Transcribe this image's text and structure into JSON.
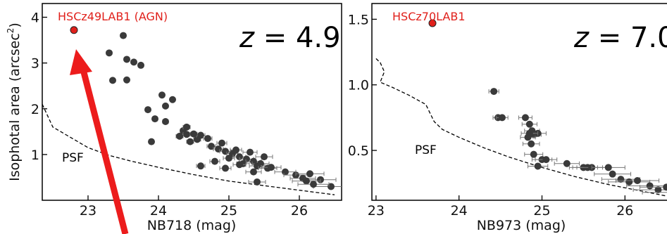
{
  "colors": {
    "points": "#3a3a3a",
    "highlight": "#e0201b",
    "arrow": "#ec1c1c"
  },
  "chart_data": [
    {
      "type": "scatter",
      "title": "",
      "xlabel": "NB718 (mag)",
      "ylabel": "Isophotal area (arcsec",
      "ylabel_sup": "2",
      "ylabel_close": ")",
      "redshift_var": "z",
      "redshift_val": " = 4.9",
      "xlim": [
        22.35,
        26.6
      ],
      "ylim": [
        0,
        4.3
      ],
      "xticks": [
        "23",
        "24",
        "25",
        "26"
      ],
      "yticks": [
        "1",
        "2",
        "3",
        "4"
      ],
      "highlight": {
        "label": "HSCz49LAB1 (AGN)",
        "x": 22.8,
        "y": 3.72
      },
      "psf_label": "PSF",
      "psf_curve": {
        "x": [
          22.35,
          22.5,
          22.7,
          23.0,
          23.3,
          23.6,
          24.0,
          24.5,
          25.0,
          25.5,
          26.0,
          26.5
        ],
        "y": [
          2.1,
          1.6,
          1.42,
          1.15,
          0.98,
          0.86,
          0.72,
          0.56,
          0.42,
          0.32,
          0.22,
          0.12
        ]
      },
      "points": {
        "x": [
          23.3,
          23.5,
          23.55,
          23.65,
          23.35,
          23.55,
          23.75,
          23.85,
          23.95,
          24.05,
          23.9,
          24.1,
          24.2,
          24.1,
          24.35,
          24.4,
          24.45,
          24.55,
          24.6,
          24.75,
          24.85,
          24.95,
          25.05,
          25.15,
          25.25,
          25.35,
          25.45,
          24.5,
          24.7,
          24.9,
          25.1,
          25.3,
          25.5,
          24.8,
          25.0,
          25.2,
          25.4,
          24.95,
          25.15,
          25.35,
          25.55,
          25.8,
          25.95,
          26.05,
          26.15,
          26.3,
          26.45,
          26.1,
          26.2,
          25.4,
          24.6,
          24.4,
          24.3,
          25.6
        ],
        "y": [
          3.22,
          3.6,
          3.08,
          3.02,
          2.62,
          2.63,
          2.95,
          1.98,
          1.78,
          2.3,
          1.28,
          2.06,
          2.2,
          1.72,
          1.52,
          1.44,
          1.28,
          1.33,
          1.42,
          1.18,
          1.12,
          1.07,
          1.02,
          0.95,
          0.9,
          0.85,
          0.8,
          1.45,
          1.35,
          1.25,
          1.1,
          1.05,
          0.95,
          0.85,
          0.92,
          0.8,
          0.75,
          0.7,
          0.78,
          0.62,
          0.7,
          0.62,
          0.55,
          0.48,
          0.58,
          0.45,
          0.3,
          0.42,
          0.35,
          0.4,
          0.75,
          1.6,
          1.4,
          0.72
        ],
        "xerr": [
          0,
          0,
          0,
          0,
          0,
          0,
          0,
          0,
          0,
          0,
          0,
          0,
          0,
          0.04,
          0.04,
          0.05,
          0.05,
          0.05,
          0.06,
          0.06,
          0.07,
          0.08,
          0.08,
          0.09,
          0.1,
          0.11,
          0.12,
          0.05,
          0.06,
          0.07,
          0.08,
          0.1,
          0.12,
          0.07,
          0.08,
          0.09,
          0.11,
          0.08,
          0.09,
          0.11,
          0.13,
          0.15,
          0.17,
          0.18,
          0.2,
          0.22,
          0.25,
          0.2,
          0.22,
          0.12,
          0.06,
          0.05,
          0.05,
          0.14
        ]
      }
    },
    {
      "type": "scatter",
      "title": "",
      "xlabel": "NB973 (mag)",
      "ylabel": "",
      "redshift_var": "z",
      "redshift_val": " = 7.0",
      "xlim": [
        22.95,
        26.6
      ],
      "ylim": [
        0.12,
        1.62
      ],
      "xticks": [
        "23",
        "24",
        "25",
        "26"
      ],
      "yticks": [
        "0.5",
        "1.0",
        "1.5"
      ],
      "highlight": {
        "label": "HSCz70LAB1",
        "x": 23.68,
        "y": 1.47
      },
      "psf_label": "PSF",
      "psf_curve": {
        "x": [
          23.0,
          23.05,
          23.1,
          23.05,
          23.2,
          23.4,
          23.6,
          23.7,
          23.8,
          24.0,
          24.3,
          24.6,
          25.0,
          25.4,
          25.8,
          26.2,
          26.6
        ],
        "y": [
          1.2,
          1.17,
          1.1,
          1.02,
          0.98,
          0.92,
          0.85,
          0.72,
          0.66,
          0.6,
          0.52,
          0.45,
          0.37,
          0.3,
          0.24,
          0.19,
          0.14
        ]
      },
      "points": {
        "x": [
          24.42,
          24.47,
          24.52,
          24.8,
          24.85,
          24.88,
          24.9,
          24.83,
          24.95,
          24.87,
          24.9,
          24.95,
          25.0,
          25.05,
          25.3,
          25.5,
          25.55,
          25.6,
          25.8,
          25.85,
          25.95,
          26.05,
          26.15,
          26.3,
          26.4,
          26.5,
          26.55,
          24.85
        ],
        "y": [
          0.95,
          0.75,
          0.75,
          0.75,
          0.7,
          0.65,
          0.62,
          0.6,
          0.63,
          0.55,
          0.47,
          0.38,
          0.43,
          0.43,
          0.4,
          0.37,
          0.37,
          0.37,
          0.37,
          0.32,
          0.28,
          0.26,
          0.27,
          0.23,
          0.2,
          0.22,
          0.18,
          0.63
        ],
        "xerr": [
          0.06,
          0.06,
          0.07,
          0.08,
          0.09,
          0.09,
          0.09,
          0.09,
          0.1,
          0.1,
          0.11,
          0.12,
          0.12,
          0.13,
          0.15,
          0.17,
          0.18,
          0.18,
          0.2,
          0.22,
          0.23,
          0.25,
          0.26,
          0.28,
          0.3,
          0.32,
          0.34,
          0.1
        ]
      }
    }
  ]
}
